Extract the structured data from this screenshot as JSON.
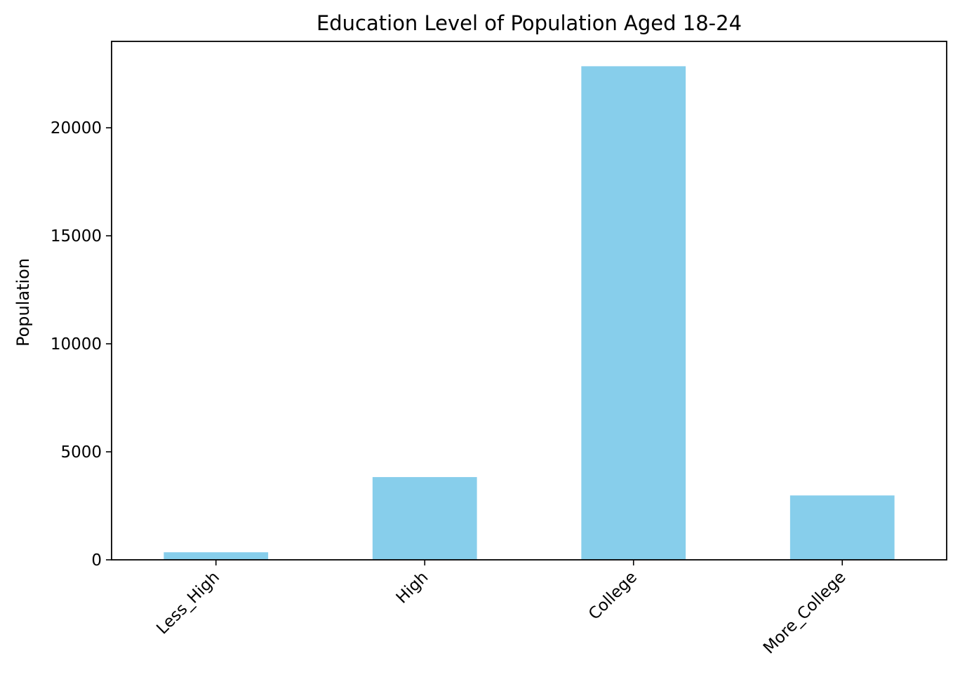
{
  "chart_data": {
    "type": "bar",
    "title": "Education Level of Population Aged 18-24",
    "xlabel": "",
    "ylabel": "Population",
    "categories": [
      "Less_High",
      "High",
      "College",
      "More_College"
    ],
    "values": [
      350,
      3830,
      22850,
      2980
    ],
    "ylim": [
      0,
      24000
    ],
    "yticks": [
      0,
      5000,
      10000,
      15000,
      20000
    ],
    "ytick_labels": [
      "0",
      "5000",
      "10000",
      "15000",
      "20000"
    ],
    "xtick_rotation_deg": 45,
    "grid": false,
    "legend": "none",
    "bar_color": "#87CEEB"
  }
}
